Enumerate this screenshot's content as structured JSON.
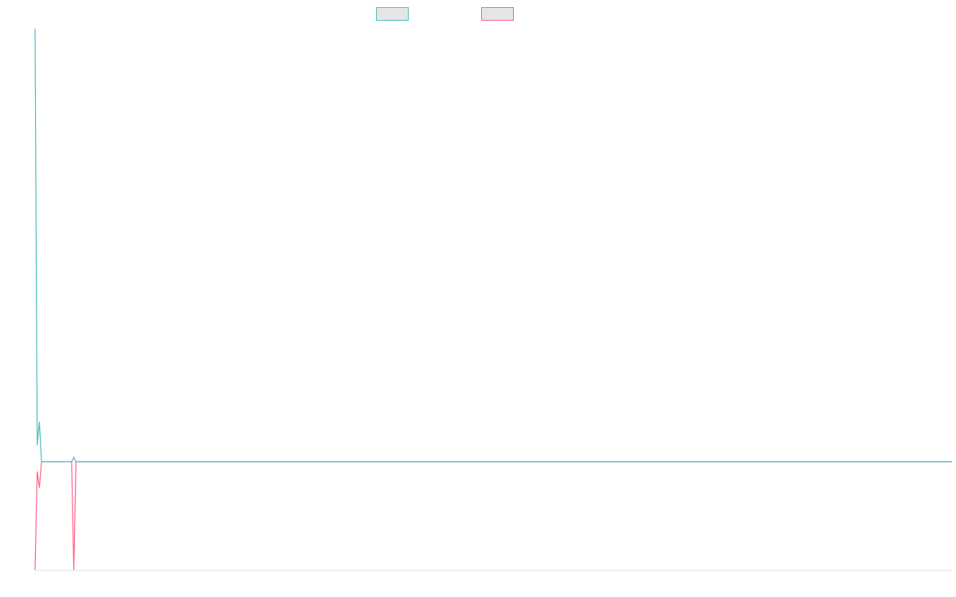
{
  "chart_data": {
    "type": "line",
    "x": [
      0,
      1,
      2,
      3,
      17,
      18,
      19,
      426
    ],
    "xlim": [
      0,
      426
    ],
    "ylim": [
      -1,
      4
    ],
    "series": [
      {
        "color": "#4bc0c0",
        "values": [
          4,
          0.15,
          0.37,
          0,
          0,
          0.04,
          0,
          0
        ]
      },
      {
        "color": "#ff6384",
        "values": [
          -1,
          -0.09,
          -0.24,
          0,
          0,
          -1,
          0,
          0
        ]
      }
    ]
  }
}
